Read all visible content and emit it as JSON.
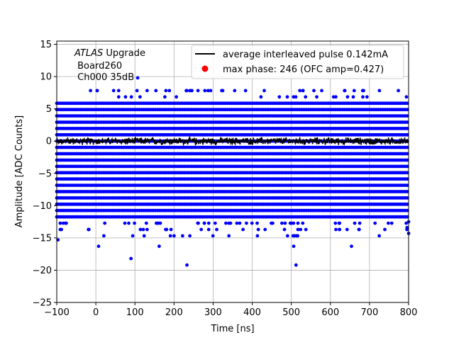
{
  "chart_data": {
    "type": "scatter",
    "title": "",
    "xlabel": "Time [ns]",
    "ylabel": "Amplitude [ADC Counts]",
    "xlim": [
      -100,
      800
    ],
    "ylim": [
      -25,
      15.5
    ],
    "xticks": [
      -100,
      0,
      100,
      200,
      300,
      400,
      500,
      600,
      700,
      800
    ],
    "xtick_labels": [
      "−100",
      "0",
      "100",
      "200",
      "300",
      "400",
      "500",
      "600",
      "700",
      "800"
    ],
    "yticks": [
      -25,
      -20,
      -15,
      -10,
      -5,
      0,
      5,
      10,
      15
    ],
    "ytick_labels": [
      "−25",
      "−20",
      "−15",
      "−10",
      "−5",
      "0",
      "5",
      "10",
      "15"
    ],
    "grid": true,
    "legend_position": "top-right",
    "annotation": {
      "line1_italic": "ATLAS",
      "line1_rest": " Upgrade",
      "line2": " Board260",
      "line3": " Ch000 35dB"
    },
    "series": [
      {
        "name": "average interleaved pulse 0.142mA",
        "kind": "line",
        "color": "#000000",
        "x_start": -100,
        "x_end": 800,
        "baseline": 0,
        "noise_amplitude": 0.45
      },
      {
        "name": "",
        "kind": "scatter",
        "color": "#0000ff",
        "x_start": -100,
        "x_end": 800,
        "level_spacing": 0.978,
        "dense_levels": [
          -12,
          6
        ],
        "sparse_levels": [
          {
            "level": 7,
            "count": 20
          },
          {
            "level": 8,
            "count": 35
          },
          {
            "level": -13,
            "count": 45
          },
          {
            "level": -14,
            "count": 28
          },
          {
            "level": -15,
            "count": 16
          }
        ],
        "outliers": [
          {
            "x": 107,
            "y": 9.8
          },
          {
            "x": -97,
            "y": -15.3
          },
          {
            "x": 7,
            "y": -16.3
          },
          {
            "x": 90,
            "y": -18.2
          },
          {
            "x": 162,
            "y": -16.3
          },
          {
            "x": 233,
            "y": -19.2
          },
          {
            "x": 512,
            "y": -19.2
          },
          {
            "x": 506,
            "y": -16.3
          },
          {
            "x": 654,
            "y": -16.3
          },
          {
            "x": 800,
            "y": -14.3
          },
          {
            "x": 800,
            "y": -12.5
          },
          {
            "x": 796,
            "y": -13.4
          }
        ]
      },
      {
        "name": "max phase: 246 (OFC amp=0.427)",
        "kind": "marker",
        "color": "#ff0000"
      }
    ]
  }
}
